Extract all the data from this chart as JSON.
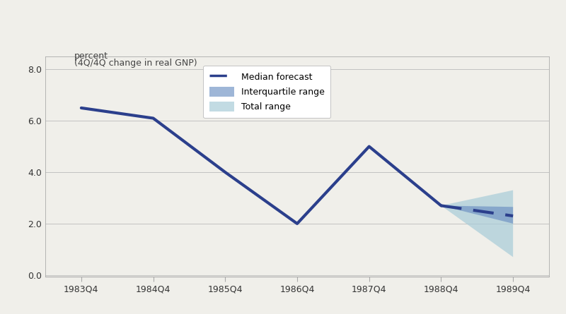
{
  "title_line1": "percent",
  "title_line2": "(4Q/4Q change in real GNP)",
  "historical_x": [
    0,
    1,
    2,
    3,
    4,
    5
  ],
  "historical_y": [
    6.5,
    6.1,
    4.0,
    2.0,
    5.0,
    2.7
  ],
  "forecast_x_start": 5,
  "forecast_x_end": 6,
  "forecast_start_y": 2.7,
  "median_forecast_end": 2.3,
  "iqr_lower_end": 2.0,
  "iqr_upper_end": 2.65,
  "total_lower_end": 0.7,
  "total_upper_end": 3.3,
  "xtick_labels": [
    "1983Q4",
    "1984Q4",
    "1985Q4",
    "1986Q4",
    "1987Q4",
    "1988Q4",
    "1989Q4"
  ],
  "ytick_values": [
    0.0,
    2.0,
    4.0,
    6.0,
    8.0
  ],
  "ylim": [
    -0.05,
    8.5
  ],
  "xlim": [
    -0.5,
    6.5
  ],
  "historical_color": "#2b3f8c",
  "median_color": "#2b3f8c",
  "iqr_color": "#6b8fc2",
  "iqr_alpha": 0.65,
  "total_color": "#a8ccd8",
  "total_alpha": 0.7,
  "background_color": "#f0efea",
  "plot_bg_color": "#f0efea",
  "border_color": "#aaaaaa",
  "grid_color": "#bbbbbb",
  "legend_median_label": "Median forecast",
  "legend_iqr_label": "Interquartile range",
  "legend_total_label": "Total range",
  "line_width": 3.0,
  "tick_label_color": "#333333",
  "tick_label_size": 9,
  "title_fontsize": 9
}
